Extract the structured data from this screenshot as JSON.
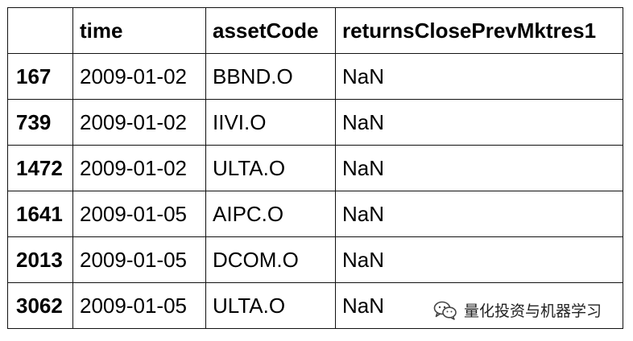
{
  "table": {
    "index_header": "",
    "columns": [
      "time",
      "assetCode",
      "returnsClosePrevMktres1"
    ],
    "rows": [
      {
        "index": "167",
        "time": "2009-01-02",
        "assetCode": "BBND.O",
        "returnsClosePrevMktres1": "NaN"
      },
      {
        "index": "739",
        "time": "2009-01-02",
        "assetCode": "IIVI.O",
        "returnsClosePrevMktres1": "NaN"
      },
      {
        "index": "1472",
        "time": "2009-01-02",
        "assetCode": "ULTA.O",
        "returnsClosePrevMktres1": "NaN"
      },
      {
        "index": "1641",
        "time": "2009-01-05",
        "assetCode": "AIPC.O",
        "returnsClosePrevMktres1": "NaN"
      },
      {
        "index": "2013",
        "time": "2009-01-05",
        "assetCode": "DCOM.O",
        "returnsClosePrevMktres1": "NaN"
      },
      {
        "index": "3062",
        "time": "2009-01-05",
        "assetCode": "ULTA.O",
        "returnsClosePrevMktres1": "NaN"
      }
    ]
  },
  "watermark": {
    "icon": "wechat-icon",
    "text": "量化投资与机器学习"
  }
}
